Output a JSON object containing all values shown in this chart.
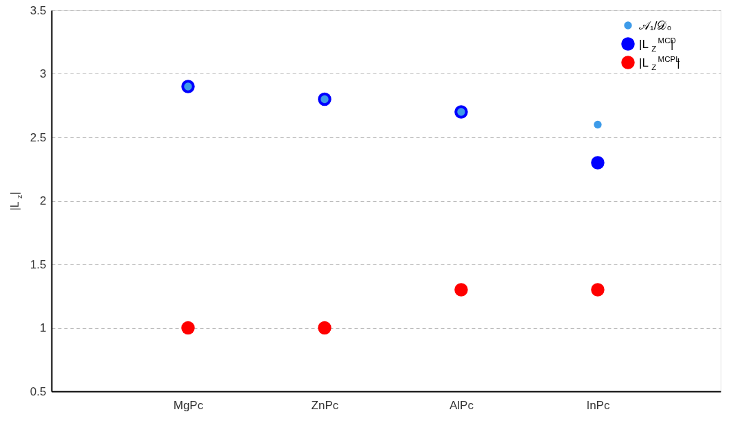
{
  "chart_data": {
    "type": "scatter",
    "ylabel": "|L$_{z}$|",
    "categories": [
      "MgPc",
      "ZnPc",
      "AlPc",
      "InPc"
    ],
    "series": [
      {
        "name": "𝒜₁/𝒟₀",
        "color": "#3d9be9",
        "values": [
          2.9,
          2.8,
          2.7,
          2.6
        ]
      },
      {
        "name": "|L$_{Z}$$^{MCD}$|",
        "color": "#0000ff",
        "values": [
          2.9,
          2.8,
          2.7,
          2.3
        ]
      },
      {
        "name": "|L$_{Z}$$^{MCPL}$|",
        "color": "#ff0000",
        "values": [
          1.0,
          1.0,
          1.3,
          1.3
        ]
      }
    ],
    "ylim": [
      0.5,
      3.5
    ],
    "yticks": [
      0.5,
      1,
      1.5,
      2,
      2.5,
      3,
      3.5
    ],
    "grid": "y",
    "legend": "top right",
    "marker": "circle"
  }
}
